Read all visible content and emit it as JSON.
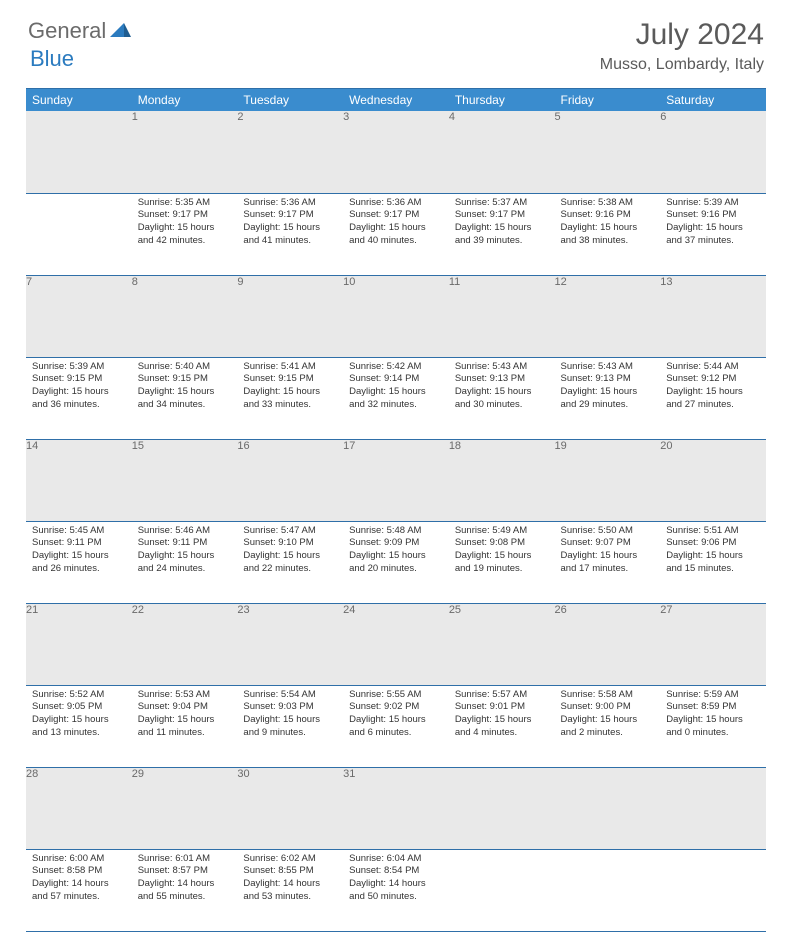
{
  "brand": {
    "general": "General",
    "blue": "Blue"
  },
  "title": "July 2024",
  "location": "Musso, Lombardy, Italy",
  "colors": {
    "header_bg": "#3a8cce",
    "header_text": "#ffffff",
    "daynum_bg": "#e9e9e9",
    "daynum_text": "#6a6a6a",
    "rule": "#2f6fa8",
    "logo_gray": "#6b6b6b",
    "logo_blue": "#2b7bbf"
  },
  "weekdays": [
    "Sunday",
    "Monday",
    "Tuesday",
    "Wednesday",
    "Thursday",
    "Friday",
    "Saturday"
  ],
  "weeks": [
    {
      "nums": [
        "",
        "1",
        "2",
        "3",
        "4",
        "5",
        "6"
      ],
      "cells": [
        {
          "empty": true
        },
        {
          "sunrise": "5:35 AM",
          "sunset": "9:17 PM",
          "daylight": "15 hours and 42 minutes."
        },
        {
          "sunrise": "5:36 AM",
          "sunset": "9:17 PM",
          "daylight": "15 hours and 41 minutes."
        },
        {
          "sunrise": "5:36 AM",
          "sunset": "9:17 PM",
          "daylight": "15 hours and 40 minutes."
        },
        {
          "sunrise": "5:37 AM",
          "sunset": "9:17 PM",
          "daylight": "15 hours and 39 minutes."
        },
        {
          "sunrise": "5:38 AM",
          "sunset": "9:16 PM",
          "daylight": "15 hours and 38 minutes."
        },
        {
          "sunrise": "5:39 AM",
          "sunset": "9:16 PM",
          "daylight": "15 hours and 37 minutes."
        }
      ]
    },
    {
      "nums": [
        "7",
        "8",
        "9",
        "10",
        "11",
        "12",
        "13"
      ],
      "cells": [
        {
          "sunrise": "5:39 AM",
          "sunset": "9:15 PM",
          "daylight": "15 hours and 36 minutes."
        },
        {
          "sunrise": "5:40 AM",
          "sunset": "9:15 PM",
          "daylight": "15 hours and 34 minutes."
        },
        {
          "sunrise": "5:41 AM",
          "sunset": "9:15 PM",
          "daylight": "15 hours and 33 minutes."
        },
        {
          "sunrise": "5:42 AM",
          "sunset": "9:14 PM",
          "daylight": "15 hours and 32 minutes."
        },
        {
          "sunrise": "5:43 AM",
          "sunset": "9:13 PM",
          "daylight": "15 hours and 30 minutes."
        },
        {
          "sunrise": "5:43 AM",
          "sunset": "9:13 PM",
          "daylight": "15 hours and 29 minutes."
        },
        {
          "sunrise": "5:44 AM",
          "sunset": "9:12 PM",
          "daylight": "15 hours and 27 minutes."
        }
      ]
    },
    {
      "nums": [
        "14",
        "15",
        "16",
        "17",
        "18",
        "19",
        "20"
      ],
      "cells": [
        {
          "sunrise": "5:45 AM",
          "sunset": "9:11 PM",
          "daylight": "15 hours and 26 minutes."
        },
        {
          "sunrise": "5:46 AM",
          "sunset": "9:11 PM",
          "daylight": "15 hours and 24 minutes."
        },
        {
          "sunrise": "5:47 AM",
          "sunset": "9:10 PM",
          "daylight": "15 hours and 22 minutes."
        },
        {
          "sunrise": "5:48 AM",
          "sunset": "9:09 PM",
          "daylight": "15 hours and 20 minutes."
        },
        {
          "sunrise": "5:49 AM",
          "sunset": "9:08 PM",
          "daylight": "15 hours and 19 minutes."
        },
        {
          "sunrise": "5:50 AM",
          "sunset": "9:07 PM",
          "daylight": "15 hours and 17 minutes."
        },
        {
          "sunrise": "5:51 AM",
          "sunset": "9:06 PM",
          "daylight": "15 hours and 15 minutes."
        }
      ]
    },
    {
      "nums": [
        "21",
        "22",
        "23",
        "24",
        "25",
        "26",
        "27"
      ],
      "cells": [
        {
          "sunrise": "5:52 AM",
          "sunset": "9:05 PM",
          "daylight": "15 hours and 13 minutes."
        },
        {
          "sunrise": "5:53 AM",
          "sunset": "9:04 PM",
          "daylight": "15 hours and 11 minutes."
        },
        {
          "sunrise": "5:54 AM",
          "sunset": "9:03 PM",
          "daylight": "15 hours and 9 minutes."
        },
        {
          "sunrise": "5:55 AM",
          "sunset": "9:02 PM",
          "daylight": "15 hours and 6 minutes."
        },
        {
          "sunrise": "5:57 AM",
          "sunset": "9:01 PM",
          "daylight": "15 hours and 4 minutes."
        },
        {
          "sunrise": "5:58 AM",
          "sunset": "9:00 PM",
          "daylight": "15 hours and 2 minutes."
        },
        {
          "sunrise": "5:59 AM",
          "sunset": "8:59 PM",
          "daylight": "15 hours and 0 minutes."
        }
      ]
    },
    {
      "nums": [
        "28",
        "29",
        "30",
        "31",
        "",
        "",
        ""
      ],
      "cells": [
        {
          "sunrise": "6:00 AM",
          "sunset": "8:58 PM",
          "daylight": "14 hours and 57 minutes."
        },
        {
          "sunrise": "6:01 AM",
          "sunset": "8:57 PM",
          "daylight": "14 hours and 55 minutes."
        },
        {
          "sunrise": "6:02 AM",
          "sunset": "8:55 PM",
          "daylight": "14 hours and 53 minutes."
        },
        {
          "sunrise": "6:04 AM",
          "sunset": "8:54 PM",
          "daylight": "14 hours and 50 minutes."
        },
        {
          "empty": true
        },
        {
          "empty": true
        },
        {
          "empty": true
        }
      ]
    }
  ],
  "labels": {
    "sunrise": "Sunrise:",
    "sunset": "Sunset:",
    "daylight": "Daylight:"
  }
}
